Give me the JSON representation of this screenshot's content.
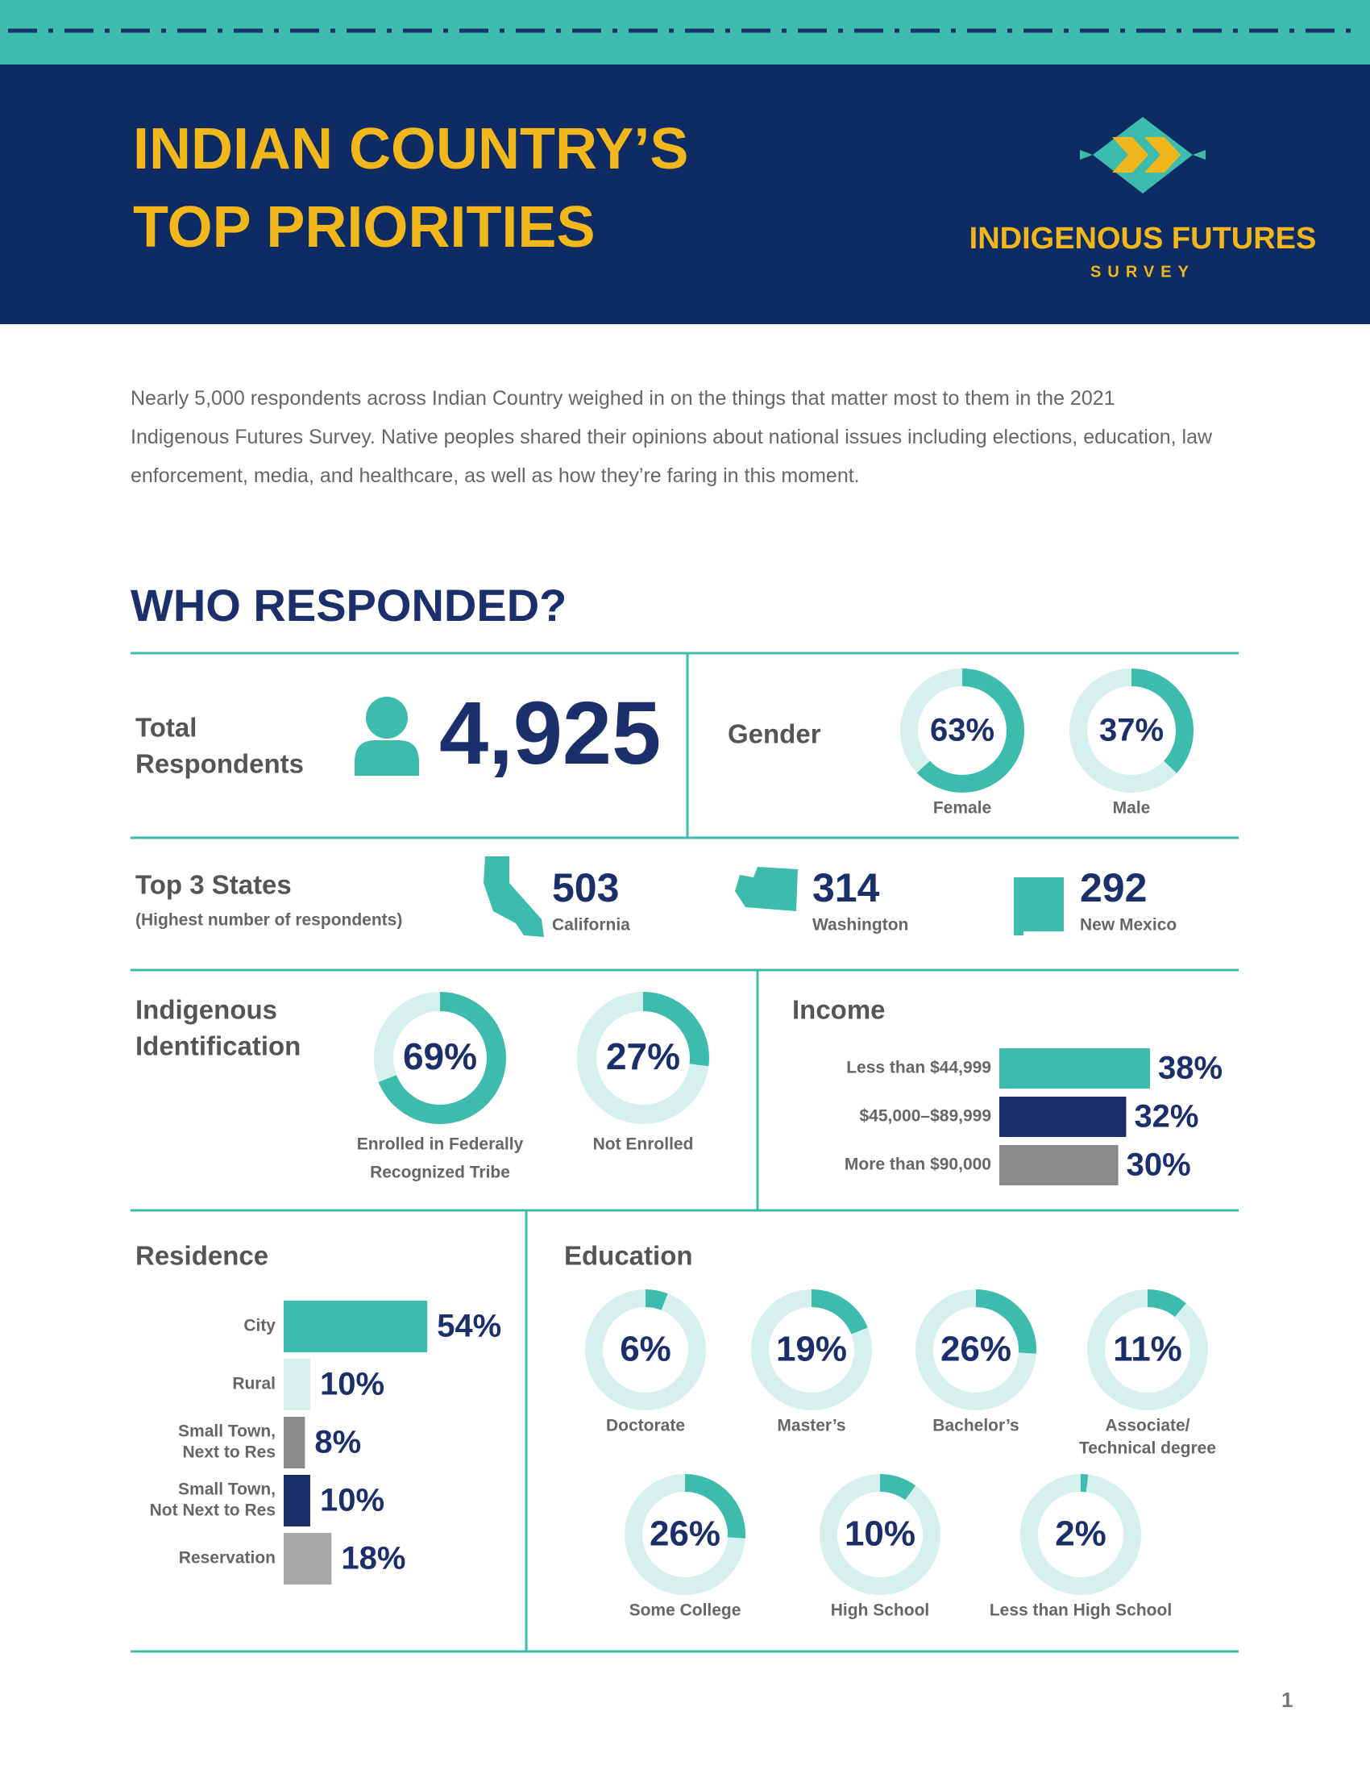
{
  "header": {
    "title_lines": [
      "INDIAN COUNTRY’S",
      "TOP PRIORITIES"
    ],
    "logo_name": "INDIGENOUS FUTURES",
    "logo_sub": "SURVEY"
  },
  "intro": "Nearly 5,000 respondents across Indian Country weighed in on the things that matter most to them in the 2021 Indigenous Futures Survey. Native peoples shared their opinions about national issues including elections, education, law enforcement, media, and healthcare, as well as how they’re faring in this moment.",
  "section_title": "WHO RESPONDED?",
  "total": {
    "label_lines": [
      "Total",
      "Respondents"
    ],
    "value": "4,925"
  },
  "gender": {
    "label": "Gender",
    "items": [
      {
        "name": "Female",
        "value": 63,
        "label": "63%"
      },
      {
        "name": "Male",
        "value": 37,
        "label": "37%"
      }
    ]
  },
  "states": {
    "label": "Top 3 States",
    "note": "(Highest number of respondents)",
    "items": [
      {
        "name": "California",
        "count": "503"
      },
      {
        "name": "Washington",
        "count": "314"
      },
      {
        "name": "New Mexico",
        "count": "292"
      }
    ]
  },
  "identification": {
    "label_lines": [
      "Indigenous",
      "Identification"
    ],
    "items": [
      {
        "name_lines": [
          "Enrolled in Federally",
          "Recognized Tribe"
        ],
        "value": 69,
        "label": "69%"
      },
      {
        "name_lines": [
          "Not Enrolled"
        ],
        "value": 27,
        "label": "27%"
      }
    ]
  },
  "income": {
    "label": "Income",
    "items": [
      {
        "name": "Less than $44,999",
        "value": 38,
        "label": "38%",
        "color": "#3dbcae"
      },
      {
        "name": "$45,000–$89,999",
        "value": 32,
        "label": "32%",
        "color": "#1b2f6b"
      },
      {
        "name": "More than $90,000",
        "value": 30,
        "label": "30%",
        "color": "#8a8a8a"
      }
    ]
  },
  "residence": {
    "label": "Residence",
    "items": [
      {
        "name_lines": [
          "City"
        ],
        "value": 54,
        "label": "54%",
        "color": "#3dbcae"
      },
      {
        "name_lines": [
          "Rural"
        ],
        "value": 10,
        "label": "10%",
        "color": "#d5f0ed"
      },
      {
        "name_lines": [
          "Small Town,",
          "Next to Res"
        ],
        "value": 8,
        "label": "8%",
        "color": "#8a8a8a"
      },
      {
        "name_lines": [
          "Small Town,",
          "Not Next to Res"
        ],
        "value": 10,
        "label": "10%",
        "color": "#1b2f6b"
      },
      {
        "name_lines": [
          "Reservation"
        ],
        "value": 18,
        "label": "18%",
        "color": "#a8a8a8"
      }
    ]
  },
  "education": {
    "label": "Education",
    "items": [
      {
        "name_lines": [
          "Doctorate"
        ],
        "value": 6,
        "label": "6%"
      },
      {
        "name_lines": [
          "Master’s"
        ],
        "value": 19,
        "label": "19%"
      },
      {
        "name_lines": [
          "Bachelor’s"
        ],
        "value": 26,
        "label": "26%"
      },
      {
        "name_lines": [
          "Associate/",
          "Technical degree"
        ],
        "value": 11,
        "label": "11%"
      },
      {
        "name_lines": [
          "Some College"
        ],
        "value": 26,
        "label": "26%"
      },
      {
        "name_lines": [
          "High School"
        ],
        "value": 10,
        "label": "10%"
      },
      {
        "name_lines": [
          "Less than High School"
        ],
        "value": 2,
        "label": "2%"
      }
    ]
  },
  "page_number": "1"
}
